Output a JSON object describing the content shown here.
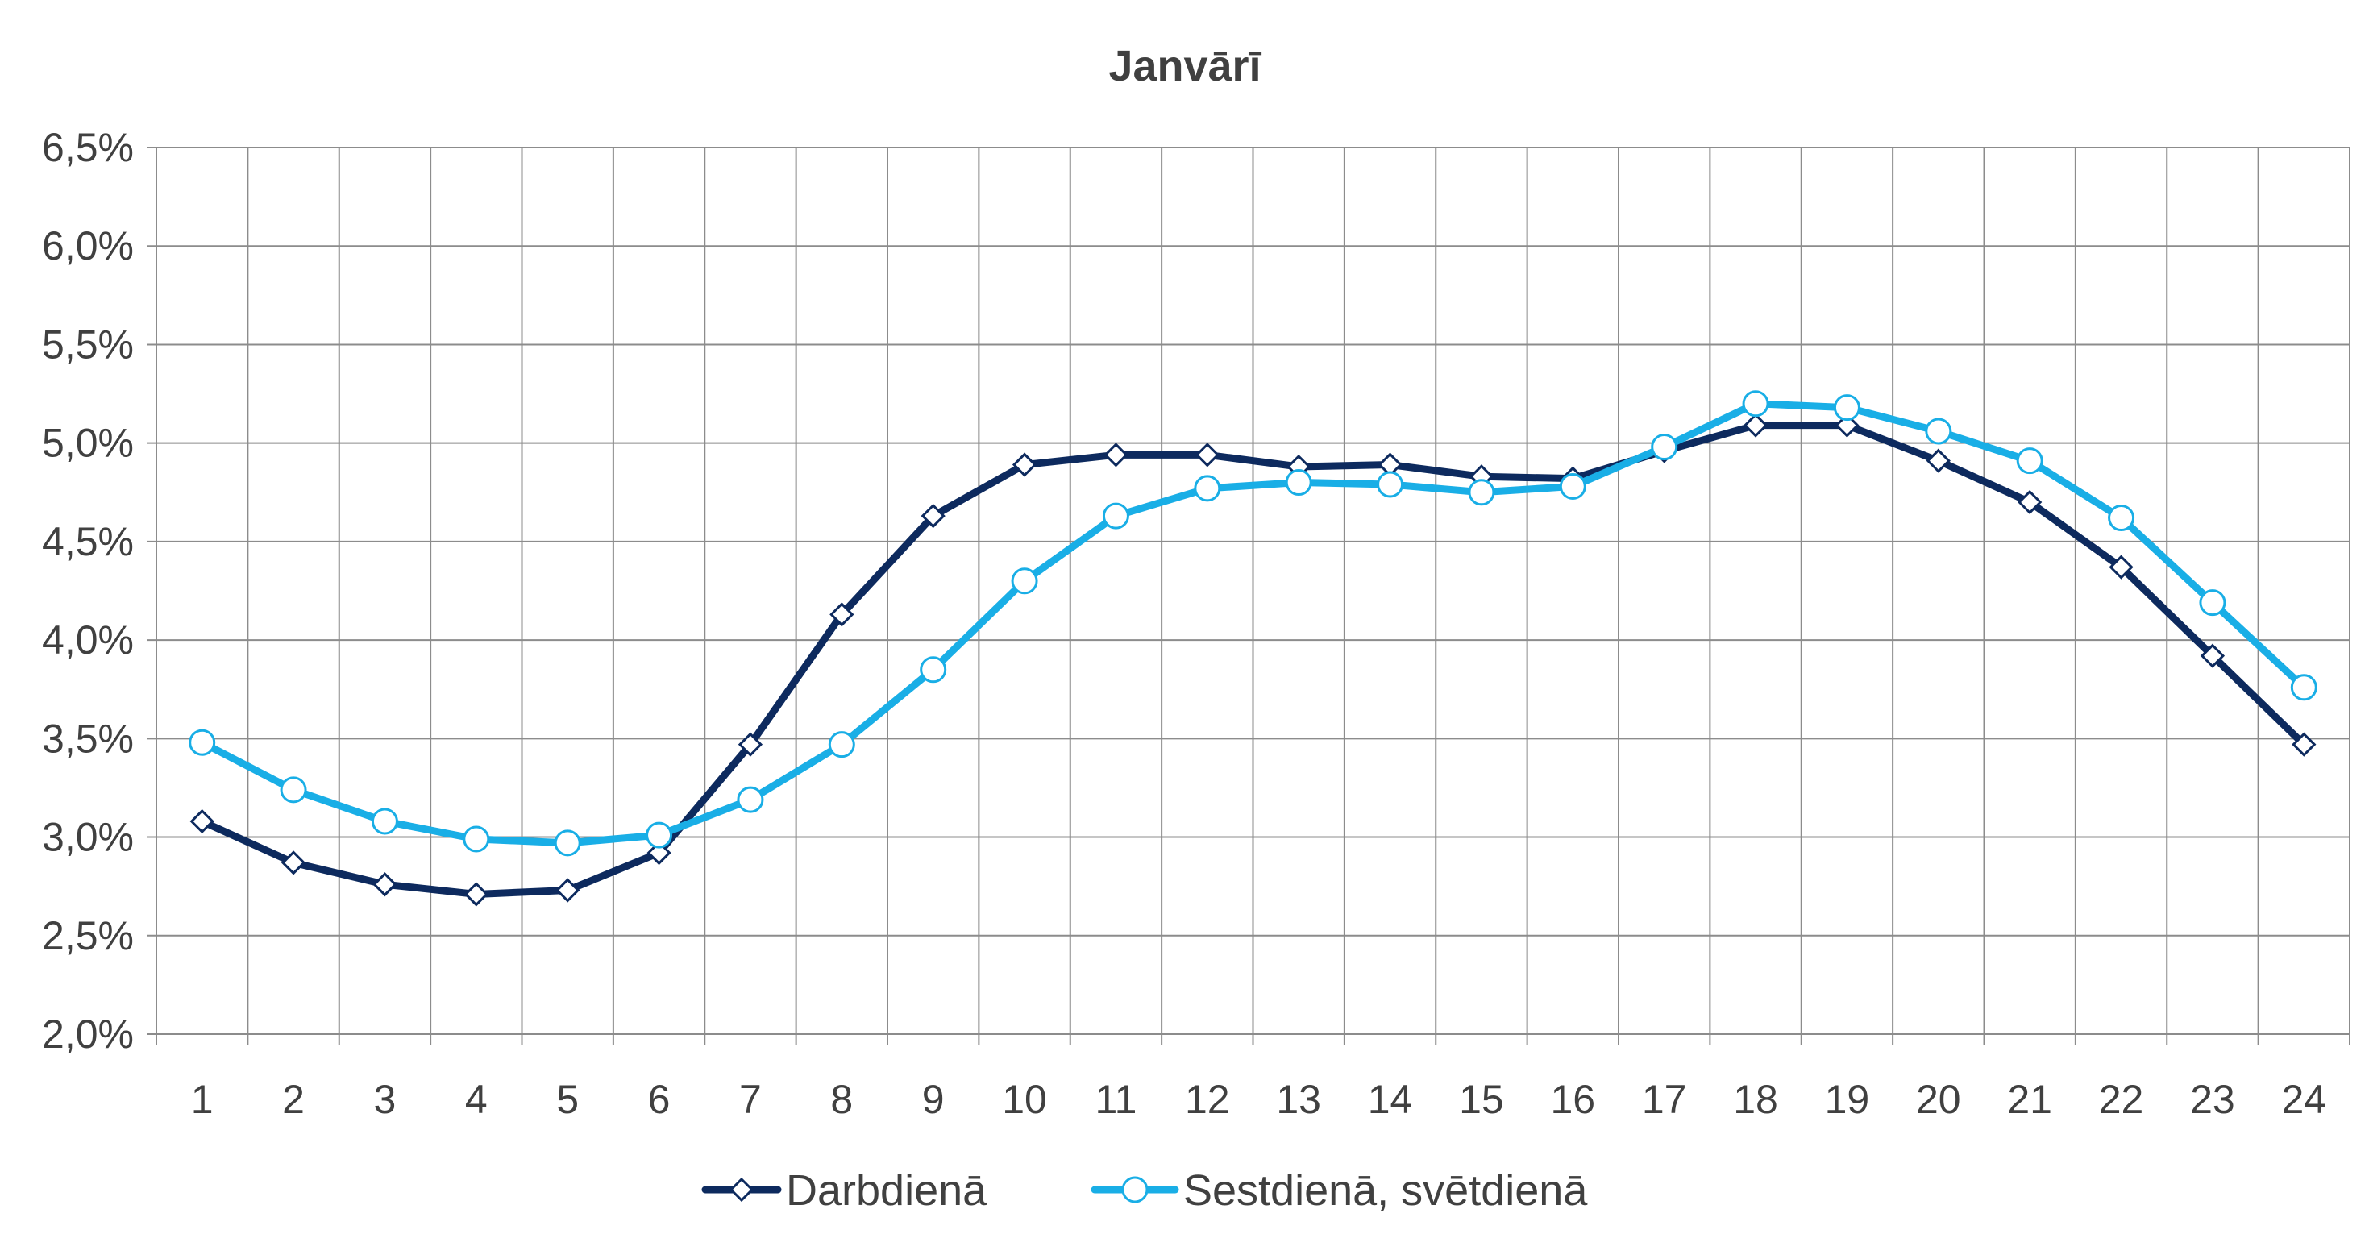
{
  "chart_data": {
    "type": "line",
    "title": "Janvārī",
    "xlabel": "",
    "ylabel": "",
    "categories": [
      "1",
      "2",
      "3",
      "4",
      "5",
      "6",
      "7",
      "8",
      "9",
      "10",
      "11",
      "12",
      "13",
      "14",
      "15",
      "16",
      "17",
      "18",
      "19",
      "20",
      "21",
      "22",
      "23",
      "24"
    ],
    "ylim": [
      2.0,
      6.5
    ],
    "ytick_values": [
      2.0,
      2.5,
      3.0,
      3.5,
      4.0,
      4.5,
      5.0,
      5.5,
      6.0,
      6.5
    ],
    "ytick_labels": [
      "2,0%",
      "2,5%",
      "3,0%",
      "3,5%",
      "4,0%",
      "4,5%",
      "5,0%",
      "5,5%",
      "6,0%",
      "6,5%"
    ],
    "grid": true,
    "legend_position": "bottom",
    "series": [
      {
        "name": "Darbdienā",
        "color": "#0d2a5e",
        "marker": "diamond",
        "values": [
          3.08,
          2.87,
          2.76,
          2.71,
          2.73,
          2.92,
          3.47,
          4.13,
          4.63,
          4.89,
          4.94,
          4.94,
          4.88,
          4.89,
          4.83,
          4.82,
          4.96,
          5.09,
          5.09,
          4.91,
          4.7,
          4.37,
          3.92,
          3.47
        ]
      },
      {
        "name": "Sestdienā, svētdienā",
        "color": "#19aee6",
        "marker": "circle",
        "values": [
          3.48,
          3.24,
          3.08,
          2.99,
          2.97,
          3.01,
          3.19,
          3.47,
          3.85,
          4.3,
          4.63,
          4.77,
          4.8,
          4.79,
          4.75,
          4.78,
          4.98,
          5.2,
          5.18,
          5.06,
          4.91,
          4.62,
          4.19,
          3.76
        ]
      }
    ]
  }
}
